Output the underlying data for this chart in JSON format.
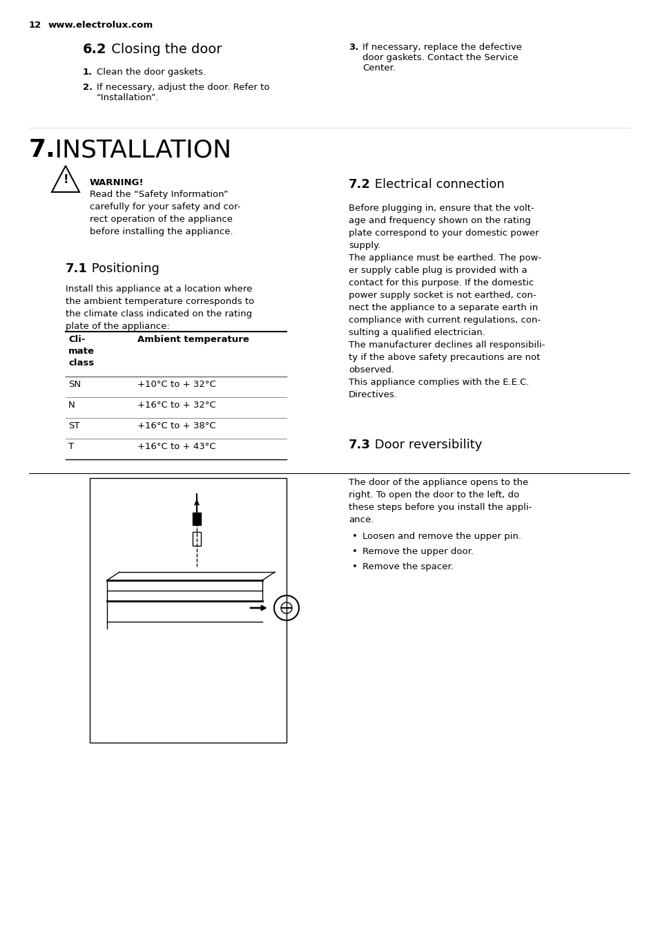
{
  "bg_color": "#ffffff",
  "page_num": "12",
  "website": "www.electrolux.com",
  "section_62_title_bold": "6.2",
  "section_62_title_rest": " Closing the door",
  "section_62_items": [
    "Clean the door gaskets.",
    "If necessary, adjust the door. Refer to\n“Installation”.",
    "If necessary, replace the defective\ndoor gaskets. Contact the Service\nCenter."
  ],
  "section_7_title_bold": "7.",
  "section_7_title_rest": " INSTALLATION",
  "warning_title": "WARNING!",
  "warning_text": "Read the “Safety Information”\ncarefully for your safety and cor-\nrect operation of the appliance\nbefore installing the appliance.",
  "section_71_title_bold": "7.1",
  "section_71_title_rest": " Positioning",
  "section_71_intro": "Install this appliance at a location where\nthe ambient temperature corresponds to\nthe climate class indicated on the rating\nplate of the appliance:",
  "table_header": [
    "Cli-\nmate\nclass",
    "Ambient temperature"
  ],
  "table_rows": [
    [
      "SN",
      "+10°C to + 32°C"
    ],
    [
      "N",
      "+16°C to + 32°C"
    ],
    [
      "ST",
      "+16°C to + 38°C"
    ],
    [
      "T",
      "+16°C to + 43°C"
    ]
  ],
  "section_72_title_bold": "7.2",
  "section_72_title_rest": " Electrical connection",
  "section_72_text": "Before plugging in, ensure that the volt-\nage and frequency shown on the rating\nplate correspond to your domestic power\nsupply.\nThe appliance must be earthed. The pow-\ner supply cable plug is provided with a\ncontact for this purpose. If the domestic\npower supply socket is not earthed, con-\nnect the appliance to a separate earth in\ncompliance with current regulations, con-\nsulting a qualified electrician.\nThe manufacturer declines all responsibili-\nty if the above safety precautions are not\nobserved.\nThis appliance complies with the E.E.C.\nDirectives.",
  "section_73_title_bold": "7.3",
  "section_73_title_rest": " Door reversibility",
  "section_73_text": "The door of the appliance opens to the\nright. To open the door to the left, do\nthese steps before you install the appli-\nance.",
  "section_73_bullets": [
    "Loosen and remove the upper pin.",
    "Remove the upper door.",
    "Remove the spacer."
  ],
  "divider_color": "#000000",
  "text_color": "#000000",
  "font_size_body": 9.5,
  "font_size_header": 16,
  "font_size_section": 13,
  "font_size_small": 8.5
}
